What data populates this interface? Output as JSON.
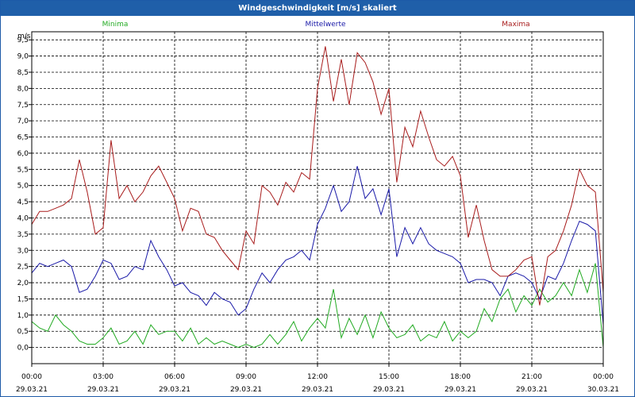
{
  "window": {
    "title": "Windgeschwindigkeit [m/s] skaliert"
  },
  "colors": {
    "minima": "#22aa22",
    "mittelwerte": "#1a1aa8",
    "maxima": "#a81c1c",
    "titlebar": "#1f5fa9"
  },
  "chart_data": {
    "type": "line",
    "title": "Windgeschwindigkeit [m/s] skaliert",
    "ylabel": "m/s",
    "ylim": [
      -0.5,
      9.75
    ],
    "xlim": [
      "29.03.21 00:00",
      "30.03.21 00:00"
    ],
    "yticks": [
      "0,0",
      "0,5",
      "1,0",
      "1,5",
      "2,0",
      "2,5",
      "3,0",
      "3,5",
      "4,0",
      "4,5",
      "5,0",
      "5,5",
      "6,0",
      "6,5",
      "7,0",
      "7,5",
      "8,0",
      "8,5",
      "9,0",
      "9,5"
    ],
    "xticks": [
      {
        "time": "00:00",
        "date": "29.03.21"
      },
      {
        "time": "03:00",
        "date": "29.03.21"
      },
      {
        "time": "06:00",
        "date": "29.03.21"
      },
      {
        "time": "09:00",
        "date": "29.03.21"
      },
      {
        "time": "12:00",
        "date": "29.03.21"
      },
      {
        "time": "15:00",
        "date": "29.03.21"
      },
      {
        "time": "18:00",
        "date": "29.03.21"
      },
      {
        "time": "21:00",
        "date": "29.03.21"
      },
      {
        "time": "00:00",
        "date": "30.03.21"
      }
    ],
    "grid": true,
    "legend": "top",
    "x_hours": [
      0,
      0.33,
      0.67,
      1,
      1.33,
      1.67,
      2,
      2.33,
      2.67,
      3,
      3.33,
      3.67,
      4,
      4.33,
      4.67,
      5,
      5.33,
      5.67,
      6,
      6.33,
      6.67,
      7,
      7.33,
      7.67,
      8,
      8.33,
      8.67,
      9,
      9.33,
      9.67,
      10,
      10.33,
      10.67,
      11,
      11.33,
      11.67,
      12,
      12.33,
      12.67,
      13,
      13.33,
      13.67,
      14,
      14.33,
      14.67,
      15,
      15.33,
      15.67,
      16,
      16.33,
      16.67,
      17,
      17.33,
      17.67,
      18,
      18.33,
      18.67,
      19,
      19.33,
      19.67,
      20,
      20.33,
      20.67,
      21,
      21.33,
      21.67,
      22,
      22.33,
      22.67,
      23,
      23.33,
      23.67,
      24
    ],
    "series": [
      {
        "name": "Minima",
        "key": "minima",
        "values": [
          0.8,
          0.6,
          0.5,
          1.0,
          0.7,
          0.5,
          0.2,
          0.1,
          0.1,
          0.3,
          0.6,
          0.1,
          0.2,
          0.5,
          0.1,
          0.7,
          0.4,
          0.5,
          0.5,
          0.2,
          0.6,
          0.1,
          0.3,
          0.1,
          0.2,
          0.1,
          0.0,
          0.1,
          0.0,
          0.1,
          0.4,
          0.1,
          0.4,
          0.8,
          0.2,
          0.6,
          0.9,
          0.6,
          1.8,
          0.3,
          0.9,
          0.4,
          1.0,
          0.3,
          1.1,
          0.6,
          0.3,
          0.4,
          0.7,
          0.2,
          0.4,
          0.3,
          0.8,
          0.2,
          0.5,
          0.3,
          0.5,
          1.2,
          0.8,
          1.5,
          1.8,
          1.1,
          1.6,
          1.3,
          1.8,
          1.4,
          1.6,
          2.0,
          1.6,
          2.4,
          1.7,
          2.6,
          0.0
        ]
      },
      {
        "name": "Mittelwerte",
        "key": "mittelwerte",
        "values": [
          2.3,
          2.6,
          2.5,
          2.6,
          2.7,
          2.5,
          1.7,
          1.8,
          2.2,
          2.7,
          2.6,
          2.1,
          2.2,
          2.5,
          2.4,
          3.3,
          2.8,
          2.4,
          1.9,
          2.0,
          1.7,
          1.6,
          1.3,
          1.7,
          1.5,
          1.4,
          1.0,
          1.2,
          1.8,
          2.3,
          2.0,
          2.4,
          2.7,
          2.8,
          3.0,
          2.7,
          3.8,
          4.3,
          5.0,
          4.2,
          4.5,
          5.6,
          4.6,
          4.9,
          4.1,
          4.9,
          2.8,
          3.7,
          3.2,
          3.7,
          3.2,
          3.0,
          2.9,
          2.8,
          2.6,
          2.0,
          2.1,
          2.1,
          2.0,
          1.6,
          2.2,
          2.3,
          2.2,
          2.0,
          1.5,
          2.2,
          2.1,
          2.6,
          3.3,
          3.9,
          3.8,
          3.6,
          0.7
        ]
      },
      {
        "name": "Maxima",
        "key": "maxima",
        "values": [
          3.8,
          4.2,
          4.2,
          4.3,
          4.4,
          4.6,
          5.8,
          4.8,
          3.5,
          3.7,
          6.4,
          4.6,
          5.0,
          4.5,
          4.8,
          5.3,
          5.6,
          5.1,
          4.6,
          3.6,
          4.3,
          4.2,
          3.5,
          3.4,
          3.0,
          2.7,
          2.4,
          3.6,
          3.2,
          5.0,
          4.8,
          4.4,
          5.1,
          4.8,
          5.4,
          5.2,
          8.0,
          9.3,
          7.6,
          8.9,
          7.5,
          9.1,
          8.8,
          8.2,
          7.2,
          8.0,
          5.1,
          6.8,
          6.2,
          7.3,
          6.5,
          5.8,
          5.6,
          5.9,
          5.3,
          3.4,
          4.4,
          3.3,
          2.4,
          2.2,
          2.2,
          2.4,
          2.7,
          2.8,
          1.3,
          2.8,
          3.0,
          3.6,
          4.4,
          5.5,
          5.0,
          4.8,
          1.7
        ]
      }
    ]
  }
}
